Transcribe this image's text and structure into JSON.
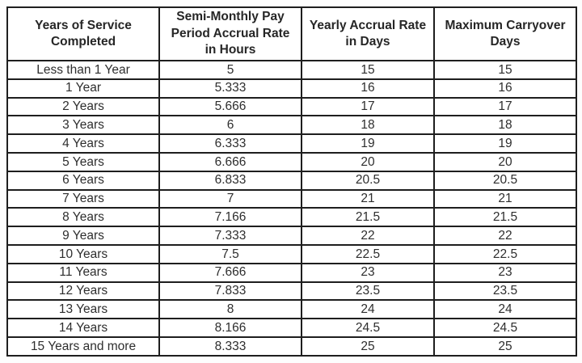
{
  "colors": {
    "border": "#1e1e1e",
    "text": "#2e2e2e",
    "background": "#ffffff"
  },
  "chart_data": {
    "type": "table",
    "title": "",
    "columns": [
      "Years of Service\nCompleted",
      "Semi-Monthly Pay\nPeriod Accrual Rate\nin Hours",
      "Yearly Accrual Rate\nin Days",
      "Maximum Carryover\nDays"
    ],
    "rows": [
      [
        "Less than 1 Year",
        "5",
        "15",
        "15"
      ],
      [
        "1 Year",
        "5.333",
        "16",
        "16"
      ],
      [
        "2 Years",
        "5.666",
        "17",
        "17"
      ],
      [
        "3 Years",
        "6",
        "18",
        "18"
      ],
      [
        "4 Years",
        "6.333",
        "19",
        "19"
      ],
      [
        "5 Years",
        "6.666",
        "20",
        "20"
      ],
      [
        "6 Years",
        "6.833",
        "20.5",
        "20.5"
      ],
      [
        "7 Years",
        "7",
        "21",
        "21"
      ],
      [
        "8 Years",
        "7.166",
        "21.5",
        "21.5"
      ],
      [
        "9 Years",
        "7.333",
        "22",
        "22"
      ],
      [
        "10 Years",
        "7.5",
        "22.5",
        "22.5"
      ],
      [
        "11 Years",
        "7.666",
        "23",
        "23"
      ],
      [
        "12 Years",
        "7.833",
        "23.5",
        "23.5"
      ],
      [
        "13 Years",
        "8",
        "24",
        "24"
      ],
      [
        "14 Years",
        "8.166",
        "24.5",
        "24.5"
      ],
      [
        "15 Years and more",
        "8.333",
        "25",
        "25"
      ]
    ]
  }
}
